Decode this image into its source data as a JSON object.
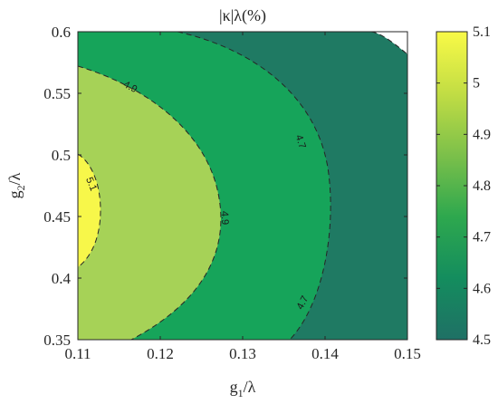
{
  "chart_data": {
    "type": "contour",
    "title": "|κ|λ(%)",
    "xlabel": {
      "main": "g",
      "sub": "1",
      "rest": "/λ"
    },
    "ylabel": {
      "main": "g",
      "sub": "2",
      "rest": "/λ"
    },
    "xlim": [
      0.11,
      0.15
    ],
    "ylim": [
      0.35,
      0.6
    ],
    "x_ticks": [
      "0.11",
      "0.12",
      "0.13",
      "0.14",
      "0.15"
    ],
    "y_ticks": [
      "0.35",
      "0.4",
      "0.45",
      "0.5",
      "0.55",
      "0.6"
    ],
    "levels": [
      4.5,
      4.7,
      4.9,
      5.1
    ],
    "level_colors": [
      "#ffffff",
      "#1f7a63",
      "#16a45a",
      "#a6d257",
      "#f7f74a"
    ],
    "contour_labels": [
      {
        "text": "4.9",
        "x": 0.1164,
        "y": 0.5556
      },
      {
        "text": "5.1",
        "x": 0.1117,
        "y": 0.4765
      },
      {
        "text": "4.9",
        "x": 0.1279,
        "y": 0.4489
      },
      {
        "text": "4.7",
        "x": 0.1371,
        "y": 0.5109
      },
      {
        "text": "4.7",
        "x": 0.1372,
        "y": 0.3803
      }
    ],
    "colorbar": {
      "range": [
        4.5,
        5.1
      ],
      "ticks": [
        "4.5",
        "4.6",
        "4.7",
        "4.8",
        "4.9",
        "5",
        "5.1"
      ],
      "colormap": [
        "#1f7065",
        "#148d5e",
        "#2ea84e",
        "#7cc04a",
        "#c2dd44",
        "#f9fa47"
      ]
    }
  }
}
